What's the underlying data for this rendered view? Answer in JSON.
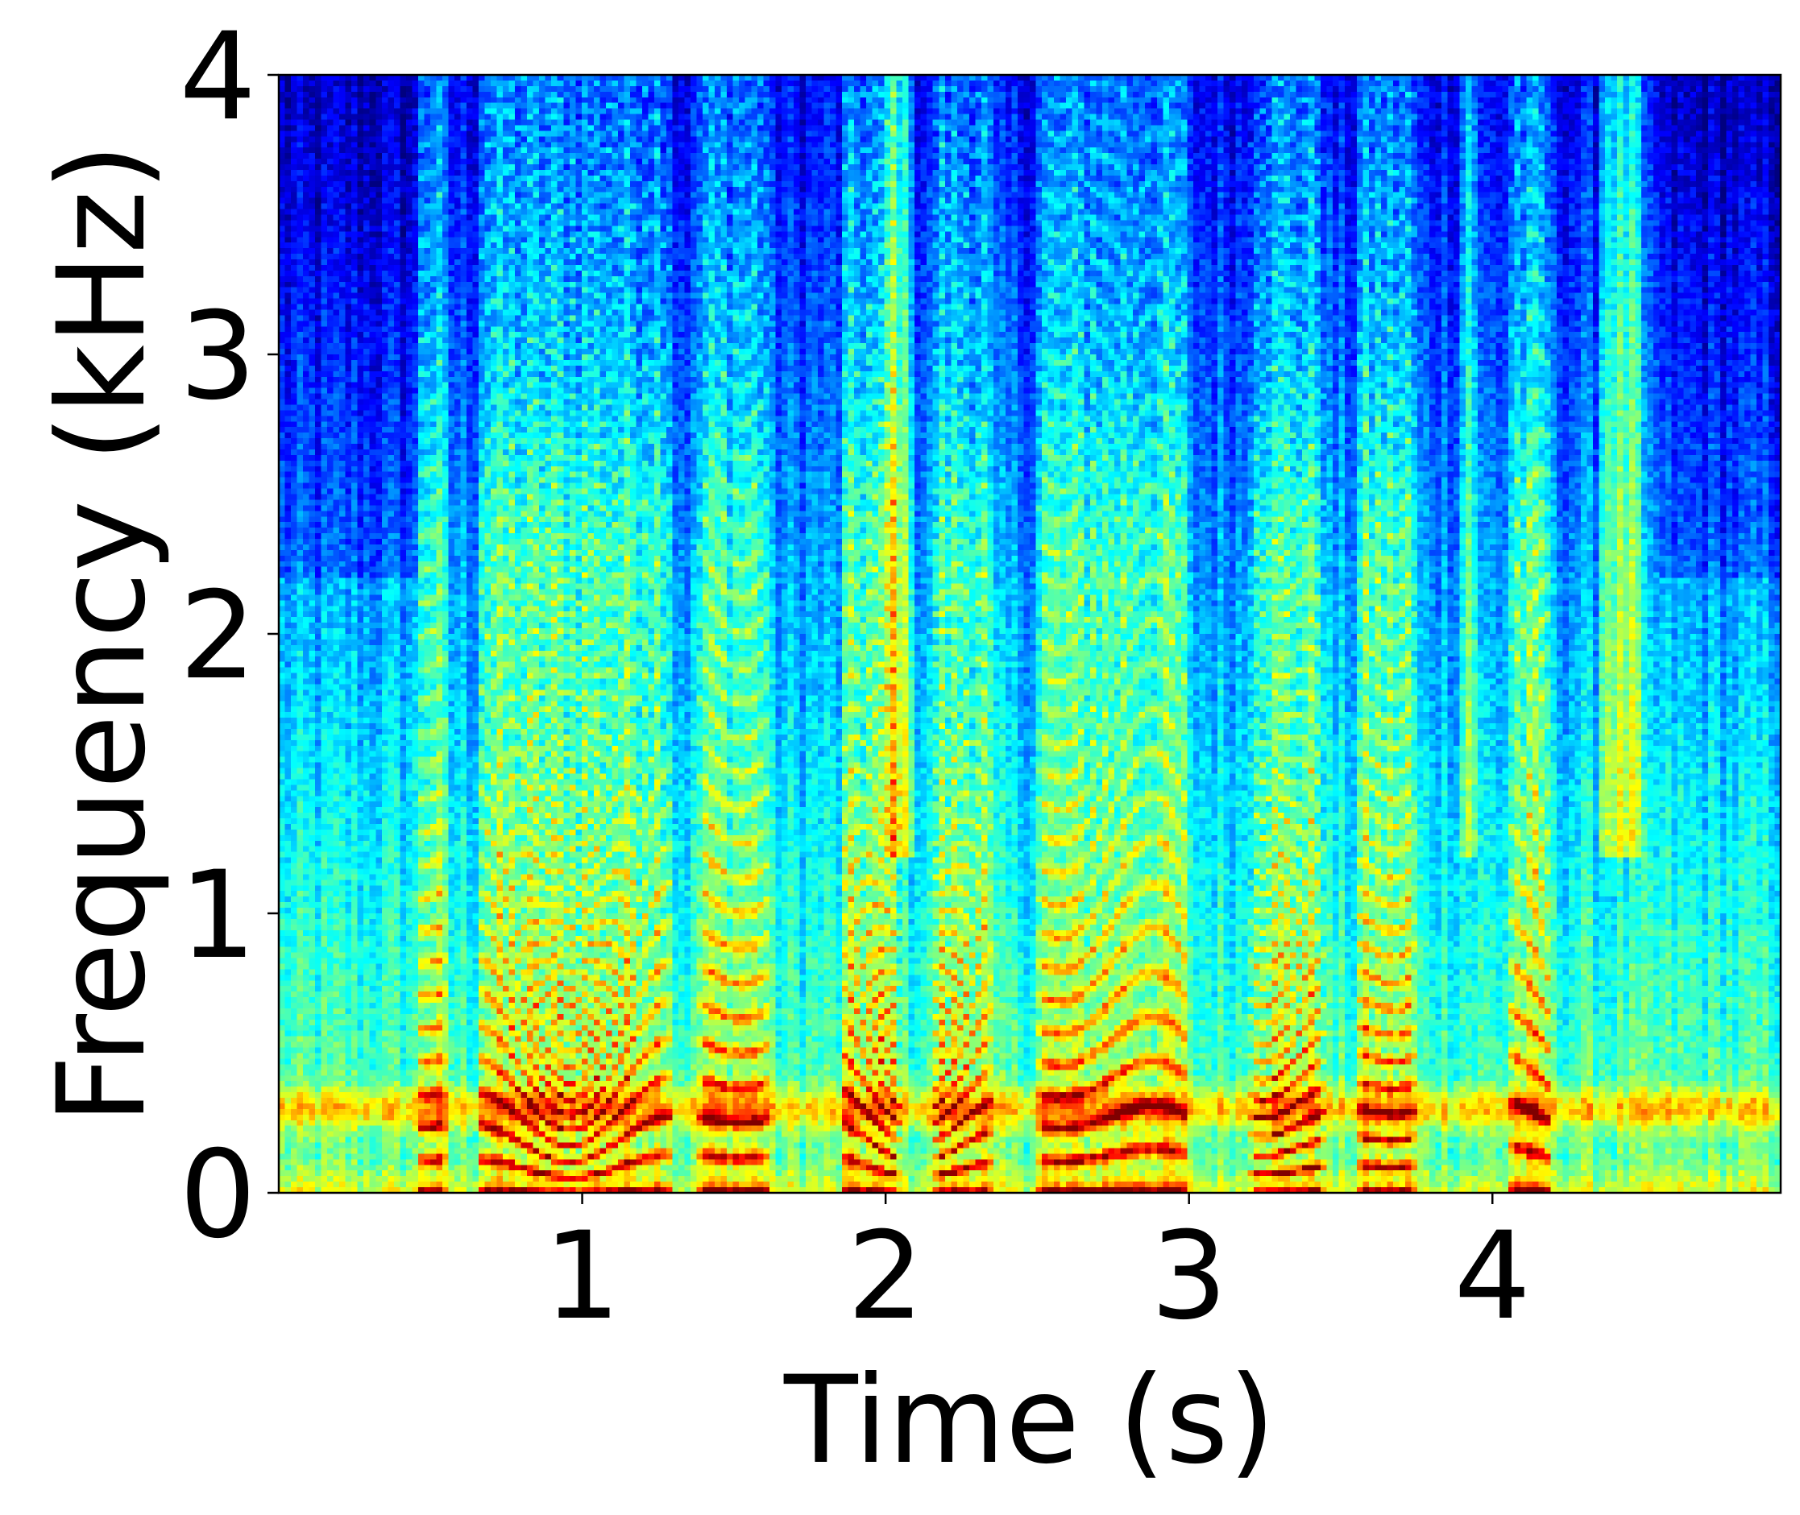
{
  "chart_data": {
    "type": "heatmap",
    "title": "",
    "xlabel": "Time (s)",
    "ylabel": "Frequency (kHz)",
    "xlim": [
      0,
      4.95
    ],
    "ylim": [
      0,
      4
    ],
    "xticks": [
      1,
      2,
      3,
      4
    ],
    "xtick_labels": [
      "1",
      "2",
      "3",
      "4"
    ],
    "yticks": [
      0,
      1,
      2,
      3,
      4
    ],
    "ytick_labels": [
      "0",
      "1",
      "2",
      "3",
      "4"
    ],
    "colormap": "jet",
    "grid": false,
    "legend": "none",
    "colorbar": false,
    "content": "speech spectrogram with harmonic bands below 1.5 kHz and strong energy near 0.3 kHz",
    "voiced_segments_s": [
      [
        0.45,
        0.55
      ],
      [
        0.65,
        1.3
      ],
      [
        1.38,
        1.62
      ],
      [
        1.85,
        2.05
      ],
      [
        2.15,
        2.35
      ],
      [
        2.5,
        3.0
      ],
      [
        3.2,
        3.45
      ],
      [
        3.55,
        3.75
      ],
      [
        4.05,
        4.2
      ]
    ],
    "high_frequency_bursts_s": [
      [
        2.0,
        2.1
      ],
      [
        3.9,
        3.95
      ],
      [
        4.35,
        4.5
      ]
    ]
  }
}
